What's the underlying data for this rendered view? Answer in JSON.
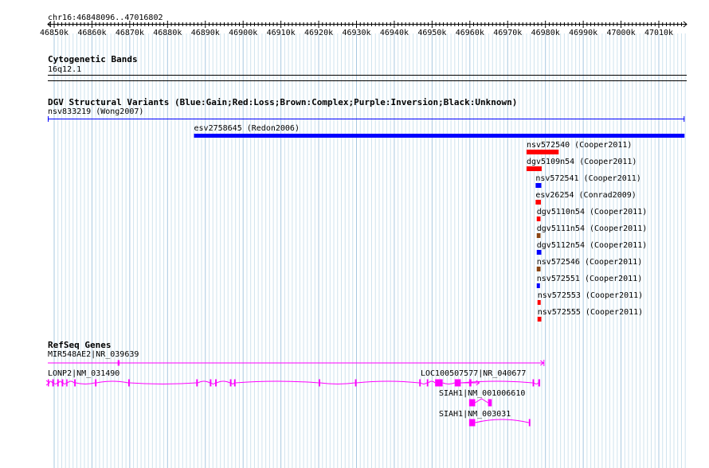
{
  "ruler": {
    "location": "chr16:46848096..47016802",
    "ticks": [
      "46850k",
      "46860k",
      "46870k",
      "46880k",
      "46890k",
      "46900k",
      "46910k",
      "46920k",
      "46930k",
      "46940k",
      "46950k",
      "46960k",
      "46970k",
      "46980k",
      "46990k",
      "47000k",
      "47010k"
    ]
  },
  "cytobands": {
    "title": "Cytogenetic Bands",
    "band": "16q12.1"
  },
  "dgv": {
    "title": "DGV Structural Variants (Blue:Gain;Red:Loss;Brown:Complex;Purple:Inversion;Black:Unknown)",
    "colors": {
      "gain": "#0000ff",
      "loss": "#ff0000",
      "complex": "#8b4513",
      "unknown": "#000000"
    },
    "features": [
      {
        "label": "nsv833219 (Wong2007)",
        "start": 46848096,
        "end": 47016802,
        "type": "gain"
      },
      {
        "label": "esv2758645 (Redon2006)",
        "start": 46887000,
        "end": 47016802,
        "type": "gain"
      },
      {
        "label": "nsv572540 (Cooper2011)",
        "start": 46975000,
        "end": 46983500,
        "type": "loss"
      },
      {
        "label": "dgv5109n54 (Cooper2011)",
        "start": 46975000,
        "end": 46979000,
        "type": "loss"
      },
      {
        "label": "nsv572541 (Cooper2011)",
        "start": 46977400,
        "end": 46978900,
        "type": "gain"
      },
      {
        "label": "esv26254 (Conrad2009)",
        "start": 46977400,
        "end": 46978800,
        "type": "loss"
      },
      {
        "label": "dgv5110n54 (Cooper2011)",
        "start": 46977700,
        "end": 46978700,
        "type": "loss"
      },
      {
        "label": "dgv5111n54 (Cooper2011)",
        "start": 46977700,
        "end": 46978700,
        "type": "complex"
      },
      {
        "label": "dgv5112n54 (Cooper2011)",
        "start": 46977700,
        "end": 46978900,
        "type": "gain"
      },
      {
        "label": "nsv572546 (Cooper2011)",
        "start": 46977700,
        "end": 46978700,
        "type": "complex"
      },
      {
        "label": "nsv572551 (Cooper2011)",
        "start": 46977700,
        "end": 46978500,
        "type": "gain"
      },
      {
        "label": "nsv572553 (Cooper2011)",
        "start": 46977900,
        "end": 46978600,
        "type": "loss"
      },
      {
        "label": "nsv572555 (Cooper2011)",
        "start": 46977900,
        "end": 46978900,
        "type": "loss"
      }
    ]
  },
  "refseq": {
    "title": "RefSeq Genes",
    "color": "#ff00ff",
    "genes": [
      {
        "label": "MIR548AE2|NR_039639",
        "start": 46848096,
        "end": 46979500,
        "blocks": [
          [
            46866800,
            46867300
          ]
        ]
      },
      {
        "label": "LONP2|NM_031490",
        "start": 46848096,
        "end": 46978600,
        "blocks": [
          [
            46848096,
            46848600
          ],
          [
            46849500,
            46849900
          ],
          [
            46850800,
            46851200
          ],
          [
            46852000,
            46852400
          ],
          [
            46853200,
            46853500
          ],
          [
            46855300,
            46855700
          ],
          [
            46860800,
            46861200
          ],
          [
            46869600,
            46870000
          ],
          [
            46887600,
            46888000
          ],
          [
            46891200,
            46891600
          ],
          [
            46892600,
            46893000
          ],
          [
            46896500,
            46896900
          ],
          [
            46897600,
            46898000
          ],
          [
            46920000,
            46920400
          ],
          [
            46929600,
            46930000
          ],
          [
            46946600,
            46947000
          ],
          [
            46948600,
            46949000
          ],
          [
            46950800,
            46952800
          ],
          [
            46956000,
            46957600
          ],
          [
            46976600,
            46977000
          ],
          [
            46978100,
            46978600
          ]
        ]
      },
      {
        "label": "LOC100507577|NR_040677",
        "start": 46956000,
        "end": 46960400,
        "blocks": [
          [
            46956000,
            46957500
          ],
          [
            46959800,
            46960400
          ]
        ]
      },
      {
        "label": "SIAH1|NM_001006610",
        "start": 46959800,
        "end": 46965800,
        "blocks": [
          [
            46959800,
            46961400
          ],
          [
            46964800,
            46965800
          ]
        ]
      },
      {
        "label": "SIAH1|NM_003031",
        "start": 46959800,
        "end": 46976000,
        "blocks": [
          [
            46959800,
            46961400
          ],
          [
            46975600,
            46976000
          ]
        ]
      }
    ]
  }
}
